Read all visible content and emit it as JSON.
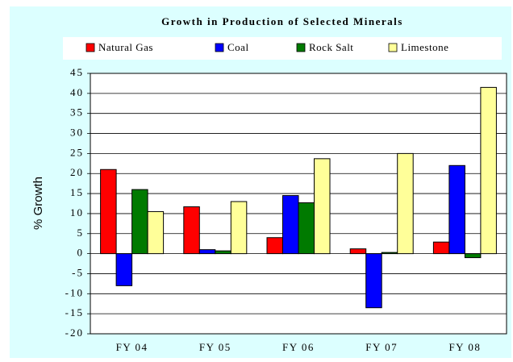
{
  "chart_data": {
    "type": "bar",
    "title": "Growth in Production of Selected Minerals",
    "y_label": "% Growth",
    "categories": [
      "FY 04",
      "FY 05",
      "FY 06",
      "FY 07",
      "FY 08"
    ],
    "series": [
      {
        "name": "Natural Gas",
        "color": "#ff0000",
        "values": [
          21,
          11.7,
          4,
          1.2,
          2.9
        ]
      },
      {
        "name": "Coal",
        "color": "#0000ff",
        "values": [
          -8,
          1,
          14.5,
          -13.5,
          22
        ]
      },
      {
        "name": "Rock Salt",
        "color": "#007a00",
        "values": [
          16,
          0.7,
          12.7,
          0.3,
          -1
        ]
      },
      {
        "name": "Limestone",
        "color": "#ffff99",
        "values": [
          10.5,
          13,
          23.7,
          25,
          41.5
        ]
      }
    ],
    "ylim": [
      -20,
      45
    ],
    "yticks": [
      -20,
      -15,
      -10,
      -5,
      0,
      5,
      10,
      15,
      20,
      25,
      30,
      35,
      40,
      45
    ],
    "grid": true
  }
}
